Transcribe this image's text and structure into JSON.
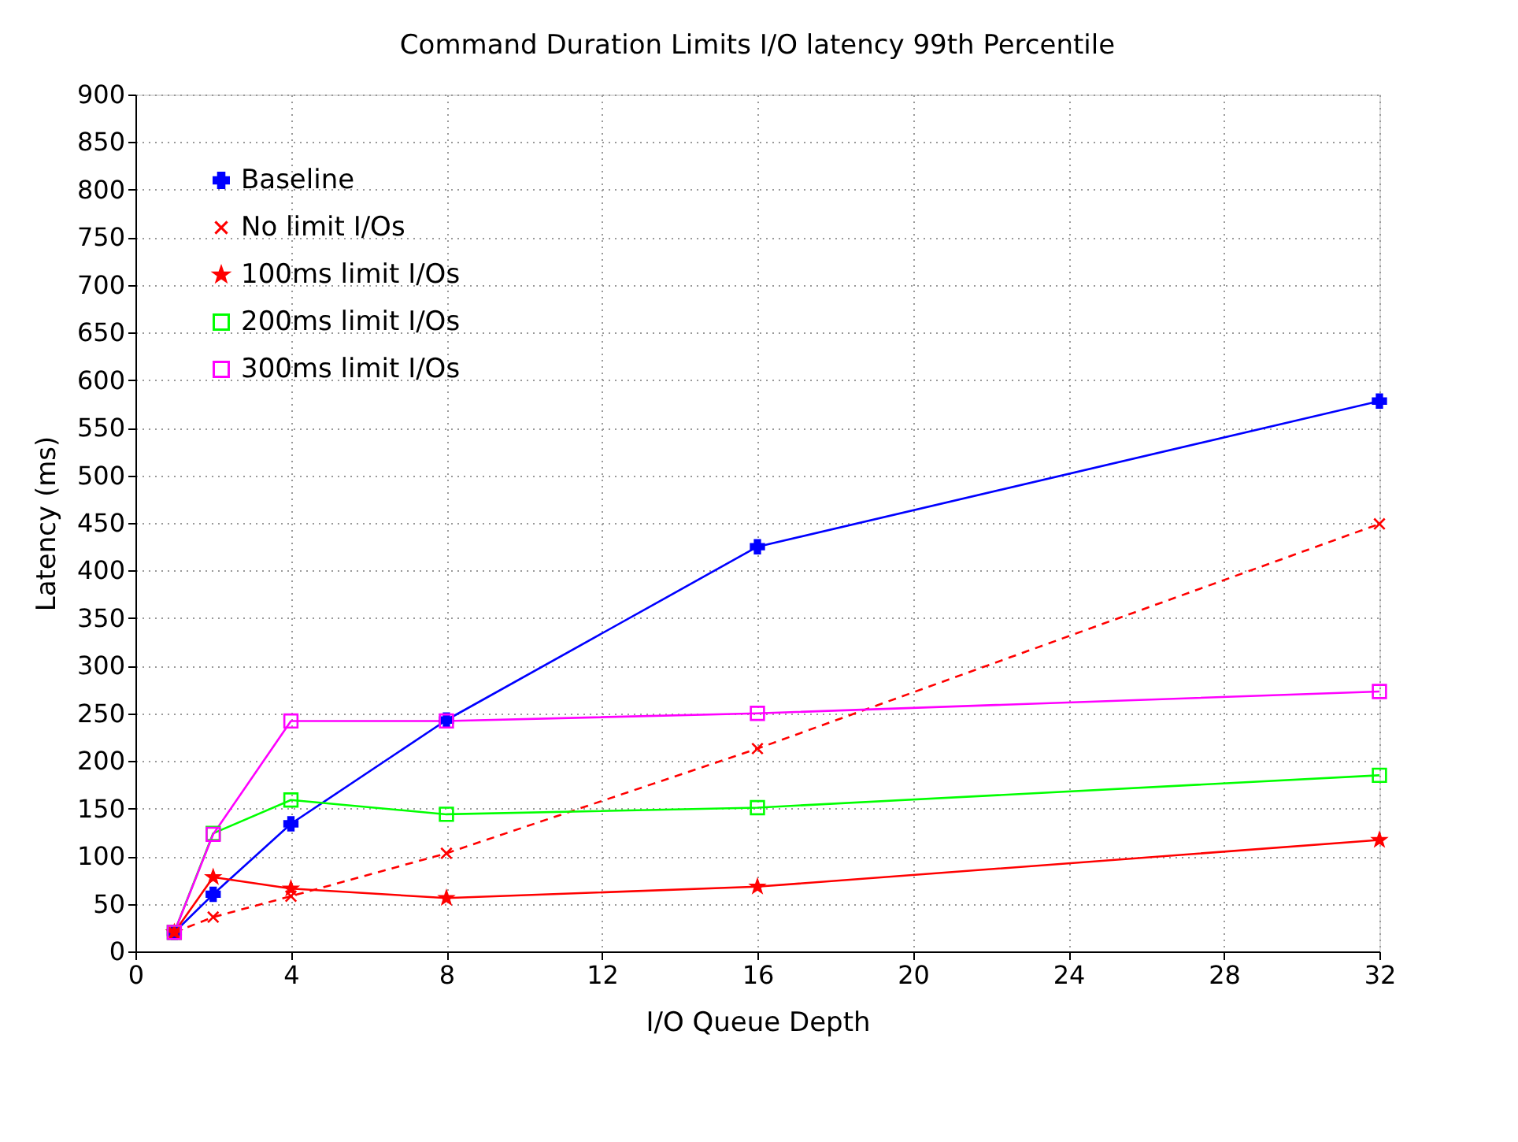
{
  "chart_data": {
    "type": "line",
    "title": "Command Duration Limits I/O latency 99th Percentile",
    "xlabel": "I/O Queue Depth",
    "ylabel": "Latency (ms)",
    "xlim": [
      0,
      32
    ],
    "xticks": [
      0,
      4,
      8,
      12,
      16,
      20,
      24,
      28,
      32
    ],
    "ylim": [
      0,
      900
    ],
    "yticks": [
      0,
      50,
      100,
      150,
      200,
      250,
      300,
      350,
      400,
      450,
      500,
      550,
      600,
      650,
      700,
      750,
      800,
      850,
      900
    ],
    "grid": true,
    "legend": "top left",
    "line_style": "solid",
    "x": [
      1,
      2,
      4,
      8,
      16,
      32
    ],
    "series": [
      {
        "name": "Baseline",
        "color": "#0000ff",
        "marker": "cross",
        "values": [
          20,
          60,
          134,
          243,
          425,
          578
        ]
      },
      {
        "name": "No limit I/Os",
        "color": "#ff0000",
        "marker": "x",
        "line_style": "dashed",
        "values": [
          20,
          36,
          58,
          103,
          213,
          449
        ]
      },
      {
        "name": "100ms limit I/Os",
        "color": "#ff0000",
        "marker": "star",
        "values": [
          20,
          78,
          66,
          56,
          68,
          117
        ]
      },
      {
        "name": "200ms limit I/Os",
        "color": "#00ff00",
        "marker": "square",
        "values": [
          20,
          124,
          159,
          144,
          151,
          185
        ]
      },
      {
        "name": "300ms limit I/Os",
        "color": "#ff00ff",
        "marker": "square",
        "values": [
          20,
          123,
          242,
          242,
          250,
          273
        ]
      }
    ]
  }
}
